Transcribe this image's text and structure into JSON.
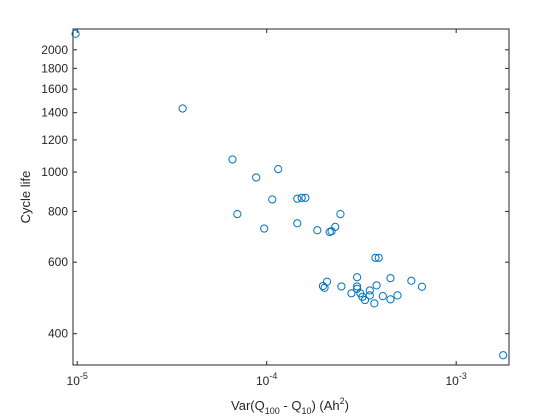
{
  "chart_data": {
    "type": "scatter",
    "title": "",
    "xlabel": "Var(Q100 - Q10) (Ah2)",
    "xlabel_parts": {
      "main": "Var(Q",
      "sub1": "100",
      "mid": " - Q",
      "sub2": "10",
      "close": ") (Ah",
      "sup": "2",
      "end": ")"
    },
    "ylabel": "Cycle life",
    "x_scale": "log",
    "y_scale": "log",
    "xlim": [
      9.5e-06,
      0.0019
    ],
    "ylim": [
      335,
      2250
    ],
    "x_ticks": [
      1e-05,
      0.0001,
      0.001
    ],
    "x_tick_labels": [
      {
        "base": "10",
        "exp": "-5"
      },
      {
        "base": "10",
        "exp": "-4"
      },
      {
        "base": "10",
        "exp": "-3"
      }
    ],
    "y_ticks": [
      400,
      600,
      800,
      1000,
      1200,
      1400,
      1600,
      1800,
      2000
    ],
    "y_tick_labels": [
      "400",
      "600",
      "800",
      "1000",
      "1200",
      "1400",
      "1600",
      "1800",
      "2000"
    ],
    "grid": false,
    "marker": "open-circle",
    "marker_color": "#0072bd",
    "series": [
      {
        "points": [
          [
            9.8e-06,
            2190
          ],
          [
            3.6e-05,
            1434
          ],
          [
            6.6e-05,
            1074
          ],
          [
            8.8e-05,
            970
          ],
          [
            0.000115,
            1017
          ],
          [
            0.000107,
            856
          ],
          [
            0.000145,
            860
          ],
          [
            0.000153,
            864
          ],
          [
            0.00016,
            864
          ],
          [
            7e-05,
            788
          ],
          [
            0.000245,
            788
          ],
          [
            0.000145,
            748
          ],
          [
            9.7e-05,
            726
          ],
          [
            0.00022,
            715
          ],
          [
            0.000215,
            712
          ],
          [
            0.000185,
            719
          ],
          [
            0.00023,
            733
          ],
          [
            0.000375,
            615
          ],
          [
            0.00039,
            615
          ],
          [
            0.00045,
            548
          ],
          [
            0.00058,
            540
          ],
          [
            0.000208,
            537
          ],
          [
            0.0003,
            551
          ],
          [
            0.00066,
            522
          ],
          [
            0.000198,
            524
          ],
          [
            0.000202,
            519
          ],
          [
            0.000248,
            523
          ],
          [
            0.0003,
            516
          ],
          [
            0.0003,
            523
          ],
          [
            0.00038,
            526
          ],
          [
            0.00035,
            511
          ],
          [
            0.00028,
            503
          ],
          [
            0.000312,
            503
          ],
          [
            0.00032,
            493
          ],
          [
            0.00035,
            497
          ],
          [
            0.00041,
            495
          ],
          [
            0.00049,
            497
          ],
          [
            0.00033,
            484
          ],
          [
            0.00045,
            486
          ],
          [
            0.00037,
            475
          ],
          [
            0.00177,
            354
          ]
        ]
      }
    ]
  }
}
